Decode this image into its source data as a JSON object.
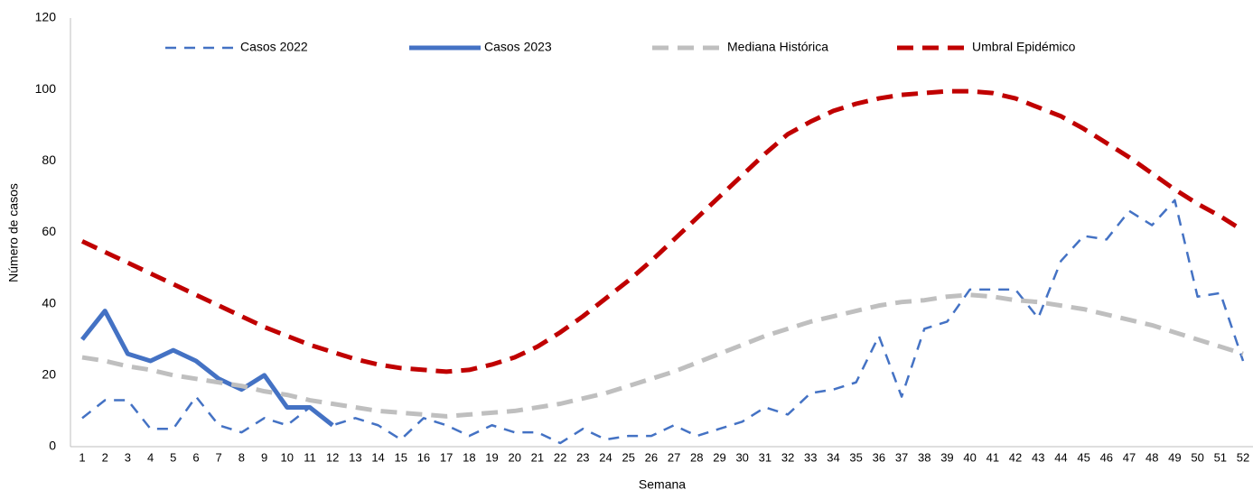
{
  "chart_data": {
    "type": "line",
    "y_label": "Número de casos",
    "x_label": "Semana",
    "categories": [
      "1",
      "2",
      "3",
      "4",
      "5",
      "6",
      "7",
      "8",
      "9",
      "10",
      "11",
      "12",
      "13",
      "14",
      "15",
      "16",
      "17",
      "18",
      "19",
      "20",
      "21",
      "22",
      "23",
      "24",
      "25",
      "26",
      "27",
      "28",
      "29",
      "30",
      "31",
      "32",
      "33",
      "34",
      "35",
      "36",
      "37",
      "38",
      "39",
      "40",
      "41",
      "42",
      "43",
      "44",
      "45",
      "46",
      "47",
      "48",
      "49",
      "50",
      "51",
      "52"
    ],
    "ylim": [
      0,
      120
    ],
    "yticks": [
      0,
      20,
      40,
      60,
      80,
      100,
      120
    ],
    "grid": false,
    "legend": "top",
    "series": [
      {
        "name": "Casos 2022",
        "color": "#4472c4",
        "line_style": "dashed",
        "values": [
          8,
          13,
          13,
          5,
          5,
          14,
          6,
          4,
          8,
          6,
          11,
          6,
          8,
          6,
          2,
          8,
          6,
          3,
          6,
          4,
          4,
          1,
          5,
          2,
          3,
          3,
          6,
          3,
          5,
          7,
          11,
          9,
          15,
          16,
          18,
          31,
          14,
          33,
          35,
          44,
          44,
          44,
          36,
          52,
          59,
          58,
          66,
          62,
          69,
          42,
          43,
          24
        ]
      },
      {
        "name": "Casos 2023",
        "color": "#4472c4",
        "line_style": "solid",
        "values": [
          30,
          38,
          26,
          24,
          27,
          24,
          19,
          16,
          20,
          11,
          11,
          6,
          null,
          null,
          null,
          null,
          null,
          null,
          null,
          null,
          null,
          null,
          null,
          null,
          null,
          null,
          null,
          null,
          null,
          null,
          null,
          null,
          null,
          null,
          null,
          null,
          null,
          null,
          null,
          null,
          null,
          null,
          null,
          null,
          null,
          null,
          null,
          null,
          null,
          null,
          null,
          null
        ]
      },
      {
        "name": "Mediana Histórica",
        "color": "#bfbfbf",
        "line_style": "dashed",
        "values": [
          25,
          24,
          22.5,
          21.5,
          20,
          19,
          18,
          17,
          15.5,
          14.5,
          13,
          12,
          11,
          10,
          9.5,
          9,
          8.5,
          9,
          9.5,
          10,
          11,
          12,
          13.5,
          15,
          17,
          19,
          21,
          23.5,
          26,
          28.5,
          31,
          33,
          35,
          36.5,
          38,
          39.5,
          40.5,
          41,
          42,
          42.5,
          42,
          41,
          40.5,
          39.5,
          38.5,
          37,
          35.5,
          34,
          32,
          30,
          28,
          26
        ]
      },
      {
        "name": "Umbral Epidémico",
        "color": "#c00000",
        "line_style": "dashed",
        "values": [
          57.5,
          54.5,
          51.5,
          48.5,
          45.5,
          42.5,
          39.5,
          36.5,
          33.5,
          31,
          28.5,
          26.5,
          24.5,
          23,
          22,
          21.5,
          21,
          21.5,
          23,
          25,
          28,
          32,
          36.5,
          41.5,
          46.5,
          52,
          58,
          64,
          70,
          76,
          82,
          87.5,
          91,
          94,
          96,
          97.5,
          98.5,
          99,
          99.5,
          99.5,
          99,
          97.5,
          95,
          92.5,
          89,
          85,
          81,
          76.5,
          72,
          68,
          64.5,
          60.5
        ]
      }
    ]
  }
}
